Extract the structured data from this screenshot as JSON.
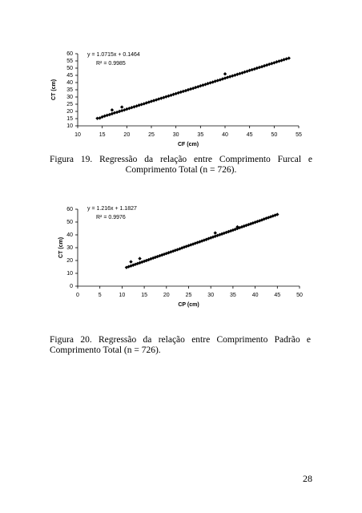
{
  "chart_data": [
    {
      "type": "scatter",
      "xlabel": "CF (cm)",
      "ylabel": "CT (cm)",
      "annotations": [
        "y = 1.0715x + 0.1464",
        "R² = 0.9985"
      ],
      "color": "#000000",
      "xlim": [
        10,
        55
      ],
      "ylim": [
        10,
        60
      ],
      "xticks": [
        10,
        15,
        20,
        25,
        30,
        35,
        40,
        45,
        50,
        55
      ],
      "yticks": [
        10,
        15,
        20,
        25,
        30,
        35,
        40,
        45,
        50,
        55,
        60
      ],
      "x": [
        14,
        14.5,
        15,
        15.5,
        16,
        16.5,
        17,
        17,
        17.5,
        18,
        18.5,
        19,
        19,
        19.5,
        20,
        20.5,
        21,
        21.5,
        22,
        22.5,
        23,
        23.5,
        24,
        24.5,
        25,
        25.5,
        26,
        26.5,
        27,
        27.5,
        28,
        28.5,
        29,
        29.5,
        30,
        30.5,
        31,
        31.5,
        32,
        32.5,
        33,
        33.5,
        34,
        34.5,
        35,
        35.5,
        36,
        36.5,
        37,
        37.5,
        38,
        38.5,
        39,
        39.5,
        40,
        40,
        40.5,
        41,
        41.5,
        42,
        42.5,
        43,
        43.5,
        44,
        44.5,
        45,
        45.5,
        46,
        46.5,
        47,
        47.5,
        48,
        48.5,
        49,
        49.5,
        50,
        50.5,
        51,
        51.5,
        52,
        52.5,
        53
      ],
      "values": [
        15.2,
        15.4,
        16.2,
        16.8,
        17.3,
        17.8,
        18.4,
        21,
        19,
        19.4,
        20,
        20.5,
        23,
        21,
        21.6,
        22.1,
        22.7,
        23.2,
        23.7,
        24.3,
        24.8,
        25.3,
        25.9,
        26.4,
        27,
        27.5,
        28,
        28.6,
        29.1,
        29.6,
        30.2,
        30.7,
        31.2,
        31.8,
        32.3,
        32.9,
        33.4,
        33.9,
        34.4,
        35,
        35.5,
        36,
        36.6,
        37.1,
        37.7,
        38.2,
        38.7,
        39.3,
        39.8,
        40.3,
        40.9,
        41.4,
        41.9,
        42.5,
        43,
        46,
        43.6,
        44.1,
        44.6,
        45.1,
        45.7,
        46.2,
        46.7,
        47.3,
        47.8,
        48.4,
        48.9,
        49.4,
        50,
        50.5,
        51,
        51.6,
        52.1,
        52.7,
        53.2,
        53.7,
        54.3,
        54.8,
        55.3,
        55.9,
        56.4,
        56.9
      ]
    },
    {
      "type": "scatter",
      "xlabel": "CP (cm)",
      "ylabel": "CT (cm)",
      "annotations": [
        "y = 1.216x + 1.1827",
        "R² = 0.9976"
      ],
      "color": "#000000",
      "xlim": [
        0,
        50
      ],
      "ylim": [
        0,
        60
      ],
      "xticks": [
        0,
        5,
        10,
        15,
        20,
        25,
        30,
        35,
        40,
        45,
        50
      ],
      "yticks": [
        0,
        10,
        20,
        30,
        40,
        50,
        60
      ],
      "x": [
        11,
        11.5,
        12,
        12,
        12.5,
        13,
        13.5,
        14,
        14,
        14.5,
        15,
        15.5,
        16,
        16.5,
        17,
        17.5,
        18,
        18.5,
        19,
        19.5,
        20,
        20.5,
        21,
        21.5,
        22,
        22.5,
        23,
        23.5,
        24,
        24.5,
        25,
        25.5,
        26,
        26.5,
        27,
        27.5,
        28,
        28.5,
        29,
        29.5,
        30,
        30.5,
        31,
        31,
        31.5,
        32,
        32.5,
        33,
        33.5,
        34,
        34.5,
        35,
        35.5,
        36,
        36,
        36.5,
        37,
        37.5,
        38,
        38.5,
        39,
        39.5,
        40,
        40.5,
        41,
        41.5,
        42,
        42.5,
        43,
        43.5,
        44,
        44.5,
        45
      ],
      "values": [
        14.6,
        15.2,
        15.8,
        19,
        16.4,
        17,
        17.6,
        18.2,
        21.5,
        18.8,
        19.4,
        20,
        20.6,
        21.3,
        21.9,
        22.5,
        23.1,
        23.7,
        24.3,
        24.9,
        25.5,
        26.1,
        26.7,
        27.3,
        27.9,
        28.5,
        29.1,
        29.8,
        30.4,
        31,
        31.6,
        32.2,
        32.8,
        33.4,
        34,
        34.6,
        35.2,
        35.8,
        36.4,
        37.1,
        37.7,
        38.3,
        38.9,
        41.5,
        39.5,
        40.1,
        40.7,
        41.3,
        41.9,
        42.5,
        43.1,
        43.7,
        44.3,
        45,
        46.2,
        45.6,
        46.2,
        46.8,
        47.4,
        48,
        48.6,
        49.2,
        49.8,
        50.4,
        51,
        51.6,
        52.3,
        52.9,
        53.5,
        54.1,
        54.7,
        55.3,
        55.9
      ]
    }
  ],
  "captions": [
    "Figura 19. Regressão da relação entre Comprimento Furcal e Comprimento Total (n = 726).",
    "Figura 20. Regressão da relação entre Comprimento Padrão e Comprimento Total (n = 726)."
  ],
  "page_number": 28
}
